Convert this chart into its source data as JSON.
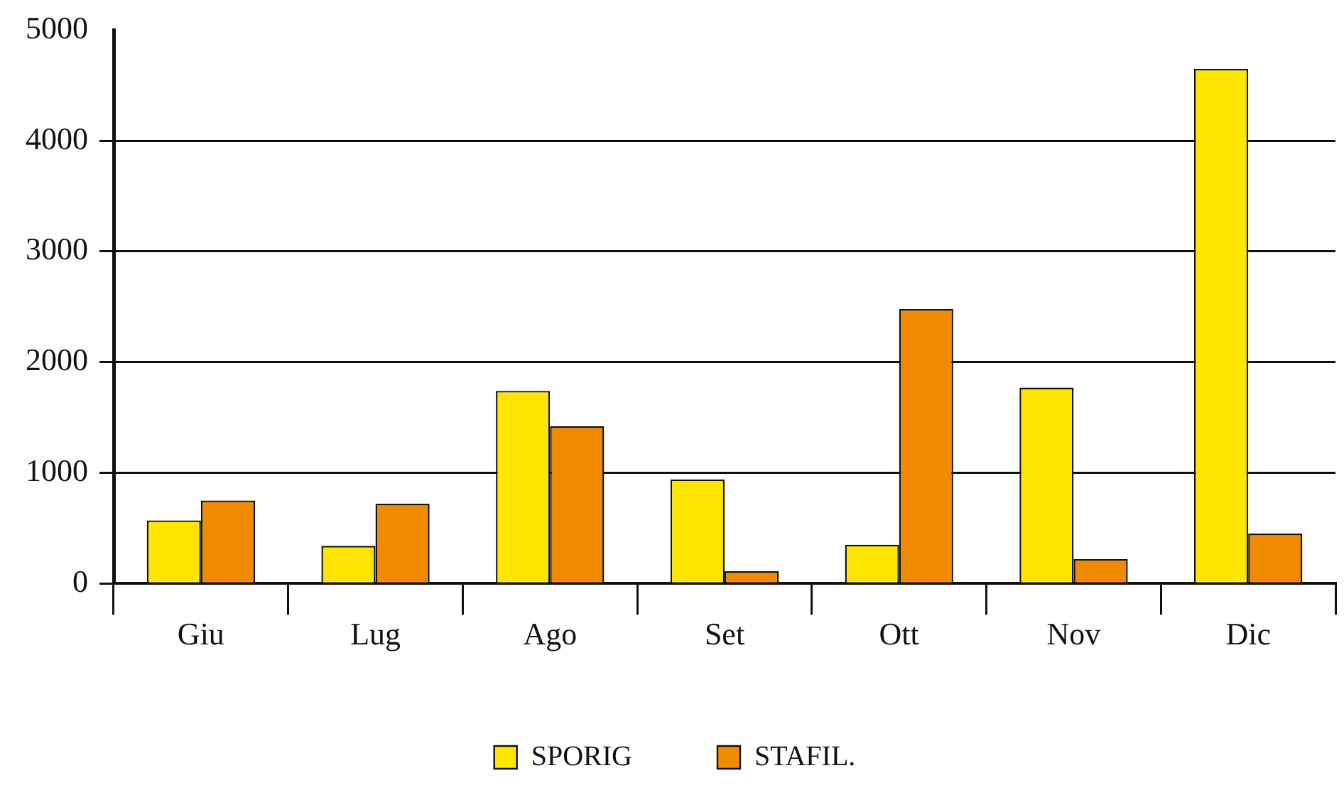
{
  "chart_data": {
    "type": "bar",
    "categories": [
      "Giu",
      "Lug",
      "Ago",
      "Set",
      "Ott",
      "Nov",
      "Dic"
    ],
    "series": [
      {
        "name": "SPORIG",
        "color": "#ffe600",
        "values": [
          570,
          340,
          1740,
          940,
          350,
          1770,
          4650
        ]
      },
      {
        "name": "STAFIL.",
        "color": "#f08a00",
        "values": [
          750,
          720,
          1420,
          110,
          2480,
          220,
          450
        ]
      }
    ],
    "ylim": [
      0,
      5000
    ],
    "yticks": [
      0,
      1000,
      2000,
      3000,
      4000,
      5000
    ],
    "grid": "y",
    "legend": "bottom"
  }
}
